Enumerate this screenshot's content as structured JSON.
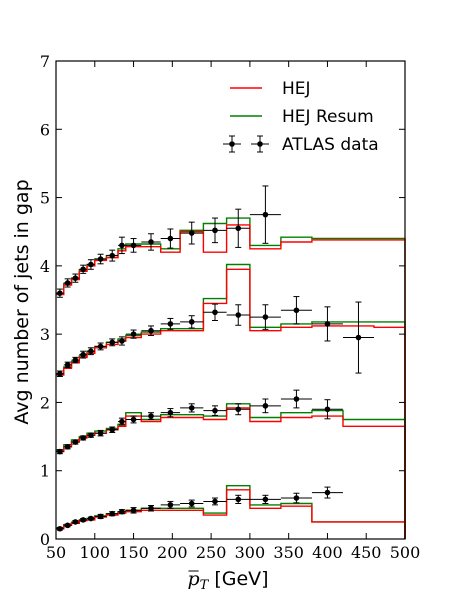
{
  "chart_data": {
    "type": "step",
    "xlabel_main": "p",
    "xlabel_sub": "T",
    "xlabel_unit": " [GeV]",
    "ylabel": "Avg number of jets in gap",
    "xlim": [
      50,
      500
    ],
    "ylim": [
      0,
      7
    ],
    "xticks": [
      50,
      100,
      150,
      200,
      250,
      300,
      350,
      400,
      450,
      500
    ],
    "yticks": [
      0,
      1,
      2,
      3,
      4,
      5,
      6,
      7
    ],
    "legend_position": "top-right",
    "bin_edges": [
      50,
      60,
      70,
      80,
      90,
      100,
      115,
      130,
      140,
      160,
      185,
      210,
      240,
      270,
      300,
      340,
      380,
      420,
      460,
      500
    ],
    "colors": {
      "HEJ": "#ff0000",
      "HEJ Resum": "#008000",
      "ATLAS data": "#000000"
    },
    "legend": [
      {
        "label": "HEJ",
        "key": "HEJ"
      },
      {
        "label": "HEJ Resum",
        "key": "HEJ Resum"
      },
      {
        "label": "ATLAS data",
        "key": "ATLAS data"
      }
    ],
    "groups": [
      {
        "HEJ": [
          3.58,
          3.72,
          3.8,
          3.92,
          4.0,
          4.08,
          4.12,
          4.22,
          4.28,
          4.28,
          4.2,
          4.5,
          4.2,
          4.6,
          4.25,
          4.35,
          4.38,
          4.38,
          4.38
        ],
        "HEJ Resum": [
          3.6,
          3.74,
          3.82,
          3.94,
          4.02,
          4.1,
          4.15,
          4.25,
          4.32,
          4.32,
          4.25,
          4.52,
          4.62,
          4.7,
          4.3,
          4.42,
          4.4,
          4.4,
          4.4
        ],
        "ATLAS data": {
          "x": [
            55,
            65,
            75,
            85,
            95,
            107.5,
            122.5,
            135,
            150,
            172.5,
            197.5,
            225,
            255,
            285,
            320,
            360,
            400,
            440,
            480
          ],
          "y": [
            3.6,
            3.75,
            3.82,
            3.95,
            4.02,
            4.1,
            4.15,
            4.3,
            4.3,
            4.35,
            4.4,
            4.48,
            4.52,
            4.55,
            4.75,
            null,
            null,
            null,
            null
          ],
          "yerr": [
            0.06,
            0.06,
            0.06,
            0.06,
            0.07,
            0.07,
            0.08,
            0.12,
            0.1,
            0.12,
            0.14,
            0.16,
            0.18,
            0.28,
            0.42,
            null,
            null,
            null,
            null
          ]
        }
      },
      {
        "HEJ": [
          2.4,
          2.5,
          2.58,
          2.66,
          2.72,
          2.8,
          2.85,
          2.9,
          2.95,
          3.0,
          3.05,
          3.05,
          3.45,
          3.95,
          3.05,
          3.1,
          3.12,
          3.12,
          3.1
        ],
        "HEJ Resum": [
          2.42,
          2.52,
          2.6,
          2.68,
          2.75,
          2.82,
          2.88,
          2.93,
          2.98,
          3.03,
          3.08,
          3.08,
          3.52,
          4.02,
          3.1,
          3.15,
          3.18,
          3.18,
          3.18
        ],
        "ATLAS data": {
          "x": [
            55,
            65,
            75,
            85,
            95,
            107.5,
            122.5,
            135,
            150,
            172.5,
            197.5,
            225,
            255,
            285,
            320,
            360,
            400,
            440,
            480
          ],
          "y": [
            2.42,
            2.55,
            2.62,
            2.7,
            2.75,
            2.82,
            2.88,
            2.9,
            3.0,
            3.05,
            3.15,
            3.18,
            3.32,
            3.28,
            3.25,
            3.35,
            3.15,
            2.95,
            null
          ],
          "yerr": [
            0.04,
            0.04,
            0.04,
            0.05,
            0.05,
            0.05,
            0.05,
            0.06,
            0.06,
            0.07,
            0.08,
            0.09,
            0.12,
            0.15,
            0.18,
            0.2,
            0.25,
            0.52,
            null
          ]
        }
      },
      {
        "HEJ": [
          1.28,
          1.35,
          1.42,
          1.48,
          1.52,
          1.55,
          1.6,
          1.65,
          1.8,
          1.72,
          1.78,
          1.78,
          1.75,
          1.92,
          1.72,
          1.78,
          1.8,
          1.65,
          1.65
        ],
        "HEJ Resum": [
          1.3,
          1.38,
          1.45,
          1.5,
          1.55,
          1.58,
          1.62,
          1.68,
          1.85,
          1.75,
          1.82,
          1.82,
          1.8,
          1.98,
          1.78,
          1.85,
          1.88,
          1.75,
          1.75
        ],
        "ATLAS data": {
          "x": [
            55,
            65,
            75,
            85,
            95,
            107.5,
            122.5,
            135,
            150,
            172.5,
            197.5,
            225,
            255,
            285,
            320,
            360,
            400,
            440,
            480
          ],
          "y": [
            1.28,
            1.35,
            1.42,
            1.48,
            1.52,
            1.55,
            1.6,
            1.72,
            1.75,
            1.8,
            1.85,
            1.92,
            1.88,
            1.9,
            1.95,
            2.05,
            1.9,
            null,
            null
          ],
          "yerr": [
            0.03,
            0.03,
            0.03,
            0.03,
            0.03,
            0.04,
            0.04,
            0.05,
            0.05,
            0.05,
            0.06,
            0.06,
            0.07,
            0.08,
            0.1,
            0.13,
            0.14,
            null,
            null
          ]
        }
      },
      {
        "HEJ": [
          0.15,
          0.2,
          0.23,
          0.27,
          0.28,
          0.32,
          0.35,
          0.38,
          0.4,
          0.42,
          0.42,
          0.42,
          0.35,
          0.72,
          0.45,
          0.48,
          0.25,
          0.25,
          0.25
        ],
        "HEJ Resum": [
          0.16,
          0.21,
          0.24,
          0.28,
          0.3,
          0.34,
          0.37,
          0.4,
          0.42,
          0.45,
          0.45,
          0.45,
          0.38,
          0.78,
          0.5,
          0.52,
          0.25,
          0.25,
          0.25
        ],
        "ATLAS data": {
          "x": [
            55,
            65,
            75,
            85,
            95,
            107.5,
            122.5,
            135,
            150,
            172.5,
            197.5,
            225,
            255,
            285,
            320,
            360,
            400,
            440,
            480
          ],
          "y": [
            0.15,
            0.2,
            0.25,
            0.28,
            0.3,
            0.33,
            0.37,
            0.4,
            0.42,
            0.45,
            0.5,
            0.52,
            0.55,
            0.58,
            0.58,
            0.6,
            0.68,
            null,
            null
          ],
          "yerr": [
            0.02,
            0.02,
            0.02,
            0.02,
            0.02,
            0.03,
            0.03,
            0.03,
            0.04,
            0.04,
            0.05,
            0.05,
            0.05,
            0.06,
            0.06,
            0.07,
            0.08,
            null,
            null
          ]
        }
      }
    ]
  }
}
